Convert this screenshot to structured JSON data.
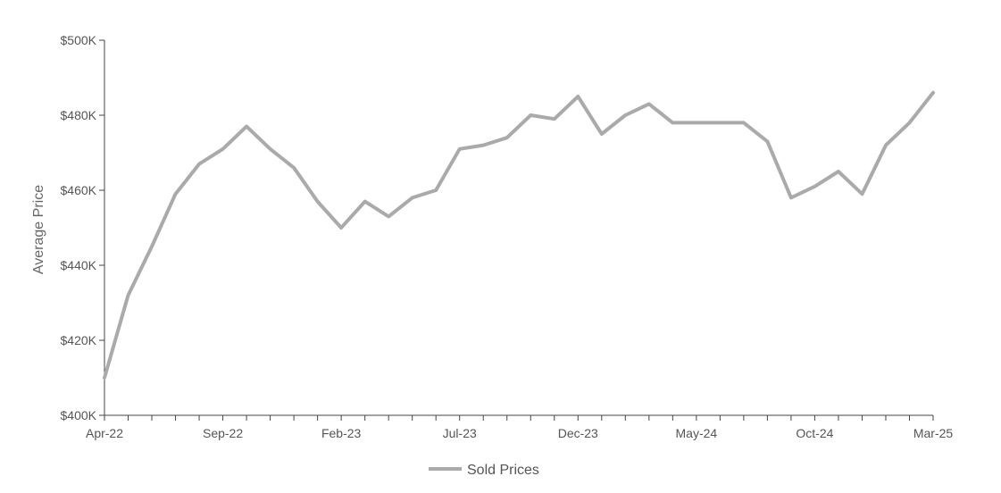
{
  "chart_data": {
    "type": "line",
    "xlabel": "",
    "ylabel": "Average Price",
    "ylim": [
      400000,
      500000
    ],
    "y_ticks": [
      {
        "value": 400000,
        "label": "$400K"
      },
      {
        "value": 420000,
        "label": "$420K"
      },
      {
        "value": 440000,
        "label": "$440K"
      },
      {
        "value": 460000,
        "label": "$460K"
      },
      {
        "value": 480000,
        "label": "$480K"
      },
      {
        "value": 500000,
        "label": "$500K"
      }
    ],
    "x_tick_labels": [
      {
        "index": 0,
        "label": "Apr-22"
      },
      {
        "index": 5,
        "label": "Sep-22"
      },
      {
        "index": 10,
        "label": "Feb-23"
      },
      {
        "index": 15,
        "label": "Jul-23"
      },
      {
        "index": 20,
        "label": "Dec-23"
      },
      {
        "index": 25,
        "label": "May-24"
      },
      {
        "index": 30,
        "label": "Oct-24"
      },
      {
        "index": 35,
        "label": "Mar-25"
      }
    ],
    "x": [
      "Apr-22",
      "May-22",
      "Jun-22",
      "Jul-22",
      "Aug-22",
      "Sep-22",
      "Oct-22",
      "Nov-22",
      "Dec-22",
      "Jan-23",
      "Feb-23",
      "Mar-23",
      "Apr-23",
      "May-23",
      "Jun-23",
      "Jul-23",
      "Aug-23",
      "Sep-23",
      "Oct-23",
      "Nov-23",
      "Dec-23",
      "Jan-24",
      "Feb-24",
      "Mar-24",
      "Apr-24",
      "May-24",
      "Jun-24",
      "Jul-24",
      "Aug-24",
      "Sep-24",
      "Oct-24",
      "Nov-24",
      "Dec-24",
      "Jan-25",
      "Feb-25",
      "Mar-25"
    ],
    "series": [
      {
        "name": "Sold Prices",
        "color": "#aaaaaa",
        "values": [
          410000,
          432000,
          445000,
          459000,
          467000,
          471000,
          477000,
          471000,
          466000,
          457000,
          450000,
          457000,
          453000,
          458000,
          460000,
          471000,
          472000,
          474000,
          480000,
          479000,
          485000,
          475000,
          480000,
          483000,
          478000,
          478000,
          478000,
          478000,
          473000,
          458000,
          461000,
          465000,
          459000,
          472000,
          478000,
          486000
        ]
      }
    ],
    "grid": false,
    "legend": "bottom-center"
  }
}
